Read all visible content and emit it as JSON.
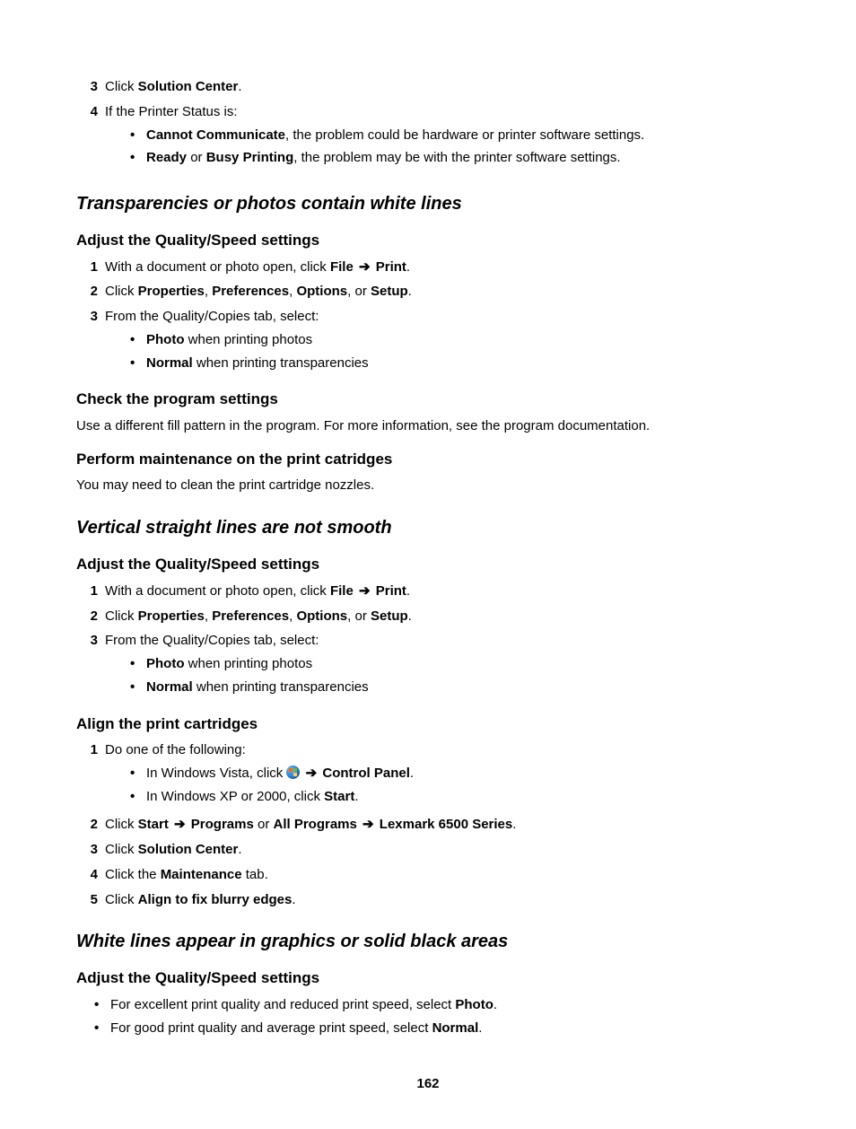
{
  "page_number": "162",
  "intro_steps": [
    {
      "n": "3",
      "runs": [
        {
          "t": "Click "
        },
        {
          "t": "Solution Center",
          "b": true
        },
        {
          "t": "."
        }
      ]
    },
    {
      "n": "4",
      "runs": [
        {
          "t": "If the Printer Status is:"
        }
      ],
      "bullets": [
        [
          {
            "t": "Cannot Communicate",
            "b": true
          },
          {
            "t": ", the problem could be hardware or printer software settings."
          }
        ],
        [
          {
            "t": "Ready",
            "b": true
          },
          {
            "t": " or "
          },
          {
            "t": "Busy Printing",
            "b": true
          },
          {
            "t": ", the problem may be with the printer software settings."
          }
        ]
      ]
    }
  ],
  "sections": [
    {
      "title": "Transparencies or photos contain white lines",
      "subs": [
        {
          "title": "Adjust the Quality/Speed settings",
          "steps": [
            {
              "n": "1",
              "runs": [
                {
                  "t": "With a document or photo open, click "
                },
                {
                  "t": "File",
                  "b": true
                },
                {
                  "t": " "
                },
                {
                  "arrow": true
                },
                {
                  "t": " "
                },
                {
                  "t": "Print",
                  "b": true
                },
                {
                  "t": "."
                }
              ]
            },
            {
              "n": "2",
              "runs": [
                {
                  "t": "Click "
                },
                {
                  "t": "Properties",
                  "b": true
                },
                {
                  "t": ", "
                },
                {
                  "t": "Preferences",
                  "b": true
                },
                {
                  "t": ", "
                },
                {
                  "t": "Options",
                  "b": true
                },
                {
                  "t": ", or "
                },
                {
                  "t": "Setup",
                  "b": true
                },
                {
                  "t": "."
                }
              ]
            },
            {
              "n": "3",
              "runs": [
                {
                  "t": "From the Quality/Copies tab, select:"
                }
              ],
              "bullets": [
                [
                  {
                    "t": "Photo",
                    "b": true
                  },
                  {
                    "t": " when printing photos"
                  }
                ],
                [
                  {
                    "t": "Normal",
                    "b": true
                  },
                  {
                    "t": " when printing transparencies"
                  }
                ]
              ]
            }
          ]
        },
        {
          "title": "Check the program settings",
          "para": "Use a different fill pattern in the program. For more information, see the program documentation."
        },
        {
          "title": "Perform maintenance on the print catridges",
          "para": "You may need to clean the print cartridge nozzles."
        }
      ]
    },
    {
      "title": "Vertical straight lines are not smooth",
      "subs": [
        {
          "title": "Adjust the Quality/Speed settings",
          "steps": [
            {
              "n": "1",
              "runs": [
                {
                  "t": "With a document or photo open, click "
                },
                {
                  "t": "File",
                  "b": true
                },
                {
                  "t": " "
                },
                {
                  "arrow": true
                },
                {
                  "t": " "
                },
                {
                  "t": "Print",
                  "b": true
                },
                {
                  "t": "."
                }
              ]
            },
            {
              "n": "2",
              "runs": [
                {
                  "t": "Click "
                },
                {
                  "t": "Properties",
                  "b": true
                },
                {
                  "t": ", "
                },
                {
                  "t": "Preferences",
                  "b": true
                },
                {
                  "t": ", "
                },
                {
                  "t": "Options",
                  "b": true
                },
                {
                  "t": ", or "
                },
                {
                  "t": "Setup",
                  "b": true
                },
                {
                  "t": "."
                }
              ]
            },
            {
              "n": "3",
              "runs": [
                {
                  "t": "From the Quality/Copies tab, select:"
                }
              ],
              "bullets": [
                [
                  {
                    "t": "Photo",
                    "b": true
                  },
                  {
                    "t": " when printing photos"
                  }
                ],
                [
                  {
                    "t": "Normal",
                    "b": true
                  },
                  {
                    "t": " when printing transparencies"
                  }
                ]
              ]
            }
          ]
        },
        {
          "title": "Align the print cartridges",
          "steps": [
            {
              "n": "1",
              "runs": [
                {
                  "t": "Do one of the following:"
                }
              ],
              "bullets": [
                [
                  {
                    "t": "In Windows Vista, click "
                  },
                  {
                    "winicon": true
                  },
                  {
                    "t": " "
                  },
                  {
                    "arrow": true
                  },
                  {
                    "t": " "
                  },
                  {
                    "t": "Control Panel",
                    "b": true
                  },
                  {
                    "t": "."
                  }
                ],
                [
                  {
                    "t": "In Windows XP or 2000, click "
                  },
                  {
                    "t": "Start",
                    "b": true
                  },
                  {
                    "t": "."
                  }
                ]
              ]
            },
            {
              "n": "2",
              "runs": [
                {
                  "t": "Click "
                },
                {
                  "t": "Start",
                  "b": true
                },
                {
                  "t": " "
                },
                {
                  "arrow": true
                },
                {
                  "t": " "
                },
                {
                  "t": "Programs",
                  "b": true
                },
                {
                  "t": " or "
                },
                {
                  "t": "All Programs",
                  "b": true
                },
                {
                  "t": " "
                },
                {
                  "arrow": true
                },
                {
                  "t": " "
                },
                {
                  "t": "Lexmark 6500 Series",
                  "b": true
                },
                {
                  "t": "."
                }
              ]
            },
            {
              "n": "3",
              "runs": [
                {
                  "t": "Click "
                },
                {
                  "t": "Solution Center",
                  "b": true
                },
                {
                  "t": "."
                }
              ]
            },
            {
              "n": "4",
              "runs": [
                {
                  "t": "Click the "
                },
                {
                  "t": "Maintenance",
                  "b": true
                },
                {
                  "t": " tab."
                }
              ]
            },
            {
              "n": "5",
              "runs": [
                {
                  "t": "Click "
                },
                {
                  "t": "Align to fix blurry edges",
                  "b": true
                },
                {
                  "t": "."
                }
              ]
            }
          ]
        }
      ]
    },
    {
      "title": "White lines appear in graphics or solid black areas",
      "subs": [
        {
          "title": "Adjust the Quality/Speed settings",
          "plain_bullets": [
            [
              {
                "t": "For excellent print quality and reduced print speed, select "
              },
              {
                "t": "Photo",
                "b": true
              },
              {
                "t": "."
              }
            ],
            [
              {
                "t": "For good print quality and average print speed, select "
              },
              {
                "t": "Normal",
                "b": true
              },
              {
                "t": "."
              }
            ]
          ]
        }
      ]
    }
  ]
}
